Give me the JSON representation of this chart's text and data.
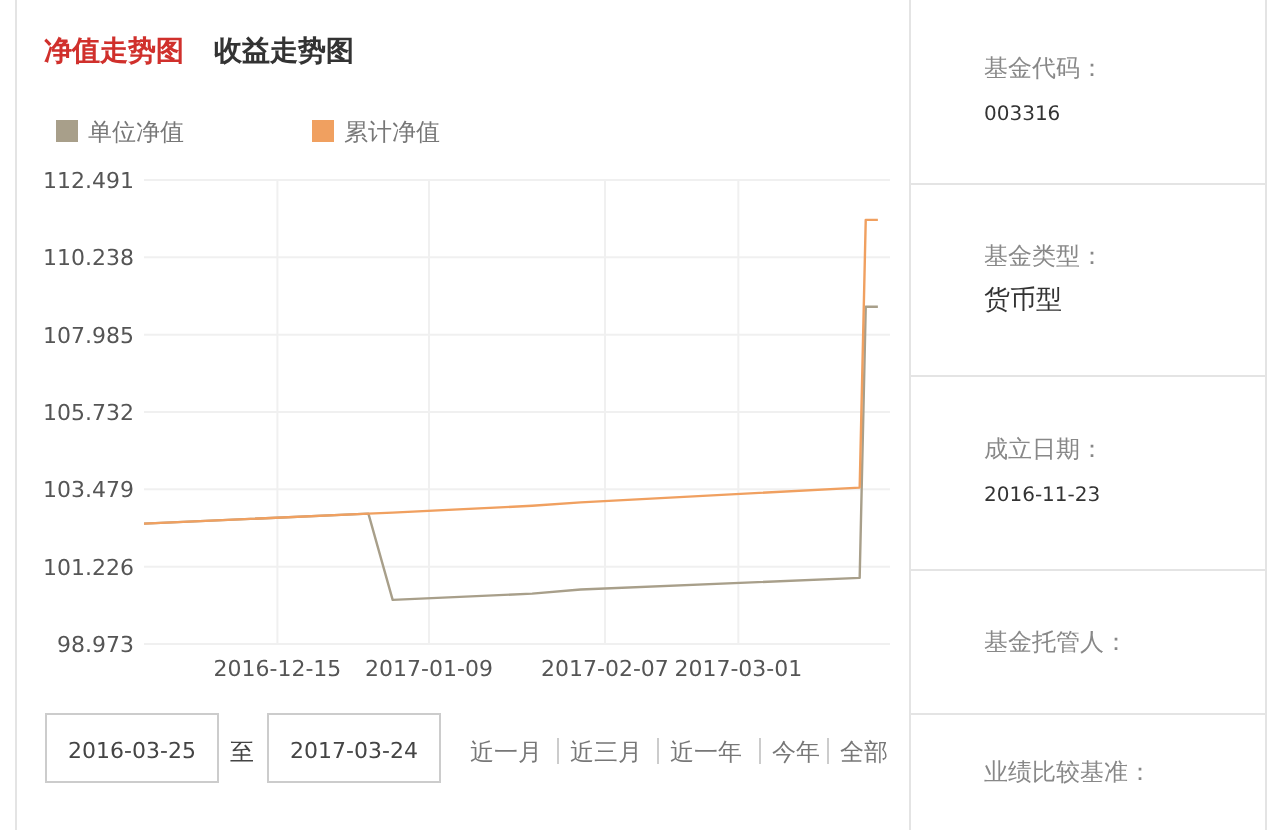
{
  "chart_data": [
    {
      "type": "line",
      "title": "净值走势图",
      "subtitle": "收益走势图",
      "x": [
        "2016-11-23",
        "2016-12-30",
        "2017-01-03",
        "2017-01-26",
        "2017-02-03",
        "2017-03-21",
        "2017-03-22",
        "2017-03-24"
      ],
      "series": [
        {
          "name": "单位净值",
          "color": "#a89f8a",
          "values": [
            102.48,
            102.77,
            100.26,
            100.44,
            100.56,
            100.9,
            108.8,
            108.8
          ]
        },
        {
          "name": "累计净值",
          "color": "#f0a060",
          "values": [
            102.48,
            102.77,
            102.8,
            103.0,
            103.1,
            103.53,
            111.33,
            111.33
          ]
        }
      ],
      "xlim": [
        "2016-11-23",
        "2017-03-26"
      ],
      "xticks": [
        "2016-12-15",
        "2017-01-09",
        "2017-02-07",
        "2017-03-01"
      ],
      "ylim": [
        98.973,
        112.491
      ],
      "yticks": [
        98.973,
        101.226,
        103.479,
        105.732,
        107.985,
        110.238,
        112.491
      ],
      "grid": true,
      "legend": "top left",
      "annotations": [
        "2016-03-25",
        "至",
        "2017-03-24",
        "近一月",
        "近三月",
        "近一年",
        "今年",
        "全部"
      ]
    },
    {
      "type": "other",
      "annotations": [
        "基金代码：",
        "003316",
        "基金类型：",
        "货币型",
        "成立日期：",
        "2016-11-23",
        "基金托管人：",
        "业绩比较基准："
      ]
    }
  ]
}
